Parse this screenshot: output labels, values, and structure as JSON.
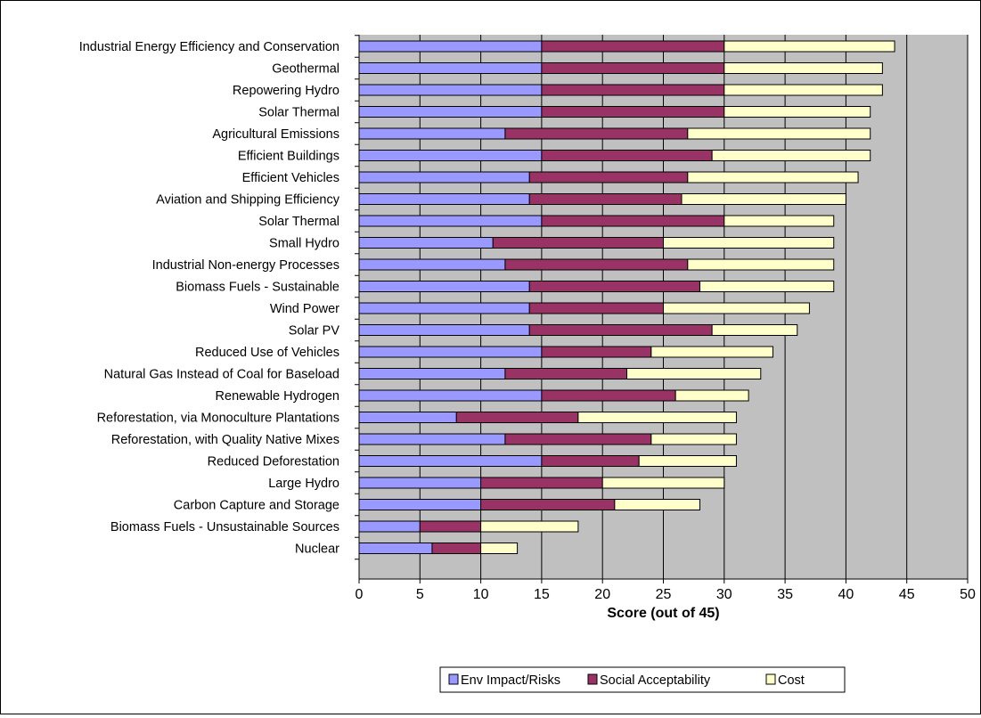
{
  "chart_data": {
    "type": "bar",
    "orientation": "horizontal",
    "stacked": true,
    "title": "",
    "xlabel": "Score (out of 45)",
    "ylabel": "",
    "xlim": [
      0,
      50
    ],
    "x_ticks": [
      0,
      5,
      10,
      15,
      20,
      25,
      30,
      35,
      40,
      45,
      50
    ],
    "grid": "vertical",
    "legend_position": "bottom",
    "categories": [
      "Industrial Energy Efficiency and Conservation",
      "Geothermal",
      "Repowering Hydro",
      "Solar Thermal",
      "Agricultural Emissions",
      "Efficient Buildings",
      "Efficient Vehicles",
      "Aviation and Shipping Efficiency",
      "Solar Thermal",
      "Small Hydro",
      "Industrial Non-energy Processes",
      "Biomass Fuels - Sustainable",
      "Wind Power",
      "Solar PV",
      "Reduced Use of Vehicles",
      "Natural Gas Instead of Coal for Baseload",
      "Renewable Hydrogen",
      "Reforestation, via Monoculture Plantations",
      "Reforestation, with Quality Native Mixes",
      "Reduced Deforestation",
      "Large Hydro",
      "Carbon Capture and Storage",
      "Biomass Fuels - Unsustainable Sources",
      "Nuclear"
    ],
    "series": [
      {
        "name": "Env Impact/Risks",
        "color": "#9999ff",
        "values": [
          15,
          15,
          15,
          15,
          12,
          15,
          14,
          14,
          15,
          11,
          12,
          14,
          14,
          14,
          15,
          12,
          15,
          8,
          12,
          15,
          10,
          10,
          5,
          6
        ]
      },
      {
        "name": "Social Acceptability",
        "color": "#993366",
        "values": [
          15,
          15,
          15,
          15,
          15,
          14,
          13,
          12.5,
          15,
          14,
          15,
          14,
          11,
          15,
          9,
          10,
          11,
          10,
          12,
          8,
          10,
          11,
          5,
          4
        ]
      },
      {
        "name": "Cost",
        "color": "#ffffcc",
        "values": [
          14,
          13,
          13,
          12,
          15,
          13,
          14,
          13.5,
          9,
          14,
          12,
          11,
          12,
          7,
          10,
          11,
          6,
          13,
          7,
          8,
          10,
          7,
          8,
          3
        ]
      }
    ]
  }
}
